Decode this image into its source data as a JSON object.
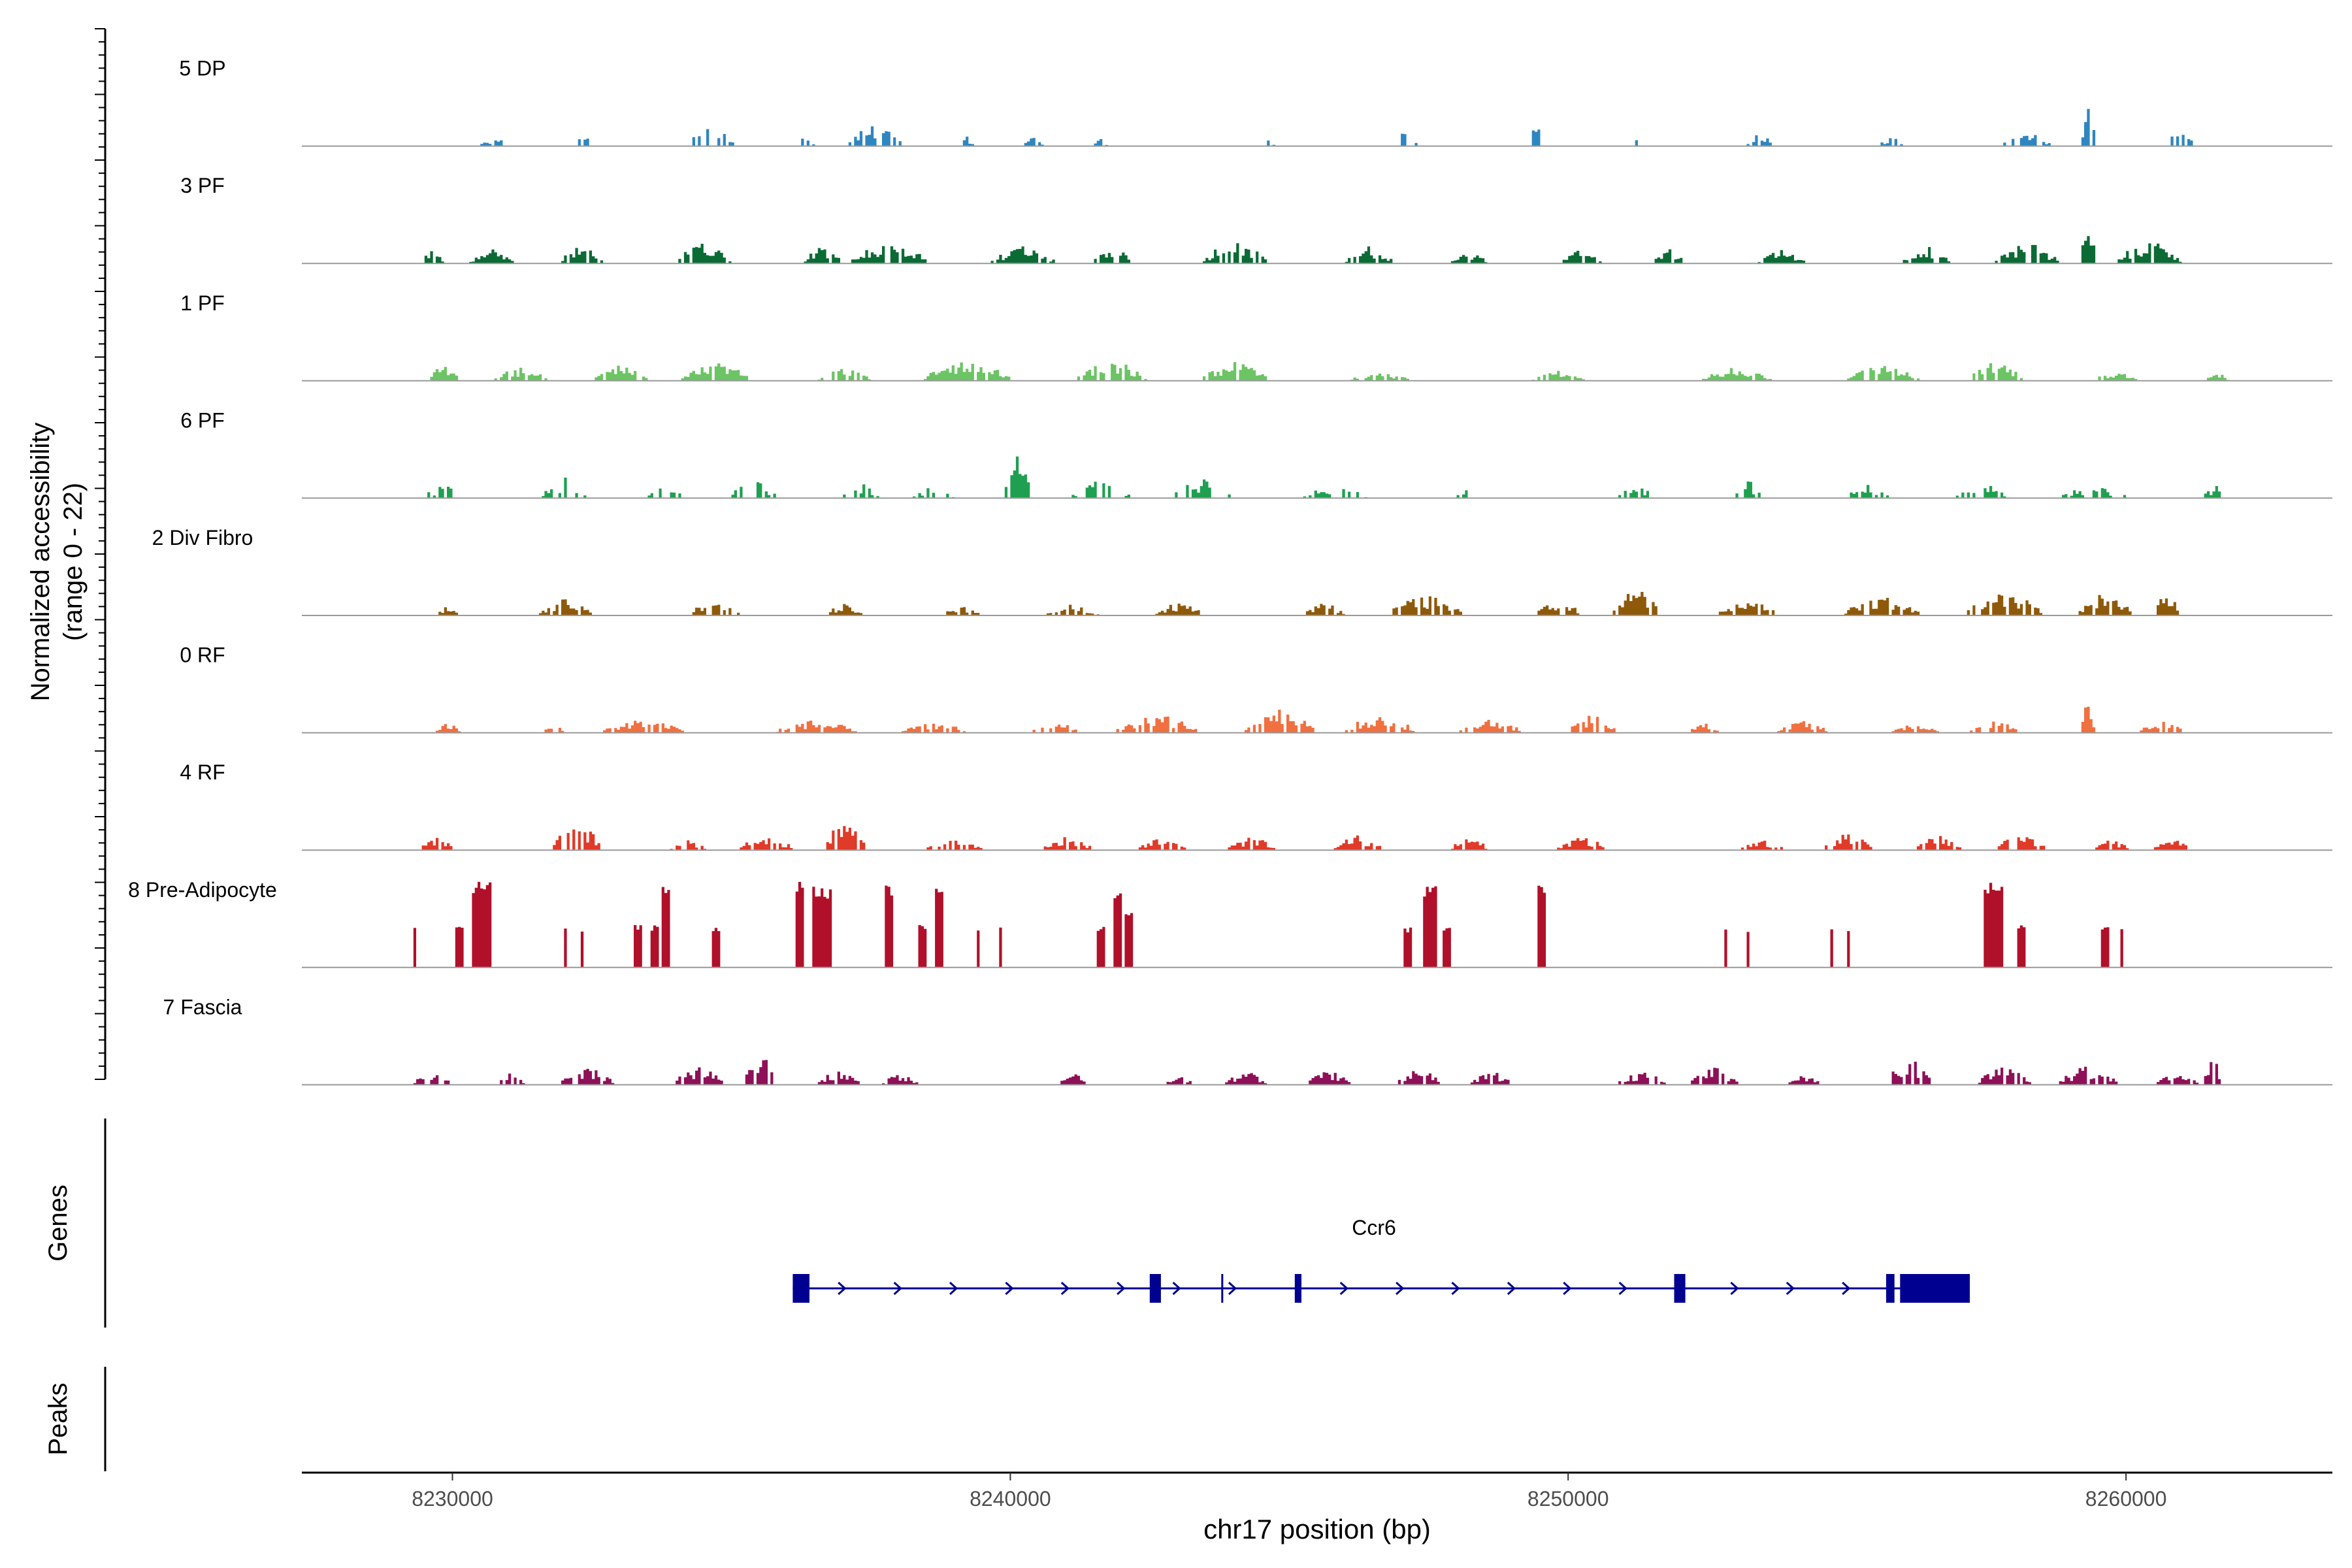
{
  "chart_data": {
    "type": "area",
    "title": "",
    "subtitle": "",
    "ylabel_line1": "Normalized accessibility",
    "ylabel_line2": "(range 0 - 22)",
    "ylim": [
      0,
      22
    ],
    "xlabel": "chr17 position (bp)",
    "xlim": [
      8227300,
      8263700
    ],
    "xticks": [
      8230000,
      8240000,
      8250000,
      8260000
    ],
    "xtick_labels": [
      "8230000",
      "8240000",
      "8250000",
      "8260000"
    ],
    "region_start": 8229000,
    "region_end": 8262100,
    "grid": false,
    "legend": "none",
    "series": [
      {
        "name": "5 DP",
        "color": "#2E86C1",
        "style": "sparse",
        "clusters": [
          [
            8230700,
            500,
            0.1
          ],
          [
            8232300,
            300,
            0.2
          ],
          [
            8234600,
            900,
            0.22
          ],
          [
            8236300,
            400,
            0.1
          ],
          [
            8237600,
            1100,
            0.24
          ],
          [
            8239200,
            300,
            0.1
          ],
          [
            8240400,
            400,
            0.1
          ],
          [
            8241600,
            300,
            0.08
          ],
          [
            8244600,
            300,
            0.07
          ],
          [
            8247100,
            400,
            0.22
          ],
          [
            8249400,
            300,
            0.22
          ],
          [
            8251200,
            200,
            0.1
          ],
          [
            8253400,
            600,
            0.12
          ],
          [
            8255800,
            500,
            0.12
          ],
          [
            8258200,
            900,
            0.15
          ],
          [
            8259300,
            250,
            0.55
          ],
          [
            8260900,
            700,
            0.14
          ]
        ]
      },
      {
        "name": "3 PF",
        "color": "#0B6B35",
        "style": "dense",
        "clusters": [
          [
            8229600,
            500,
            0.14
          ],
          [
            8230700,
            900,
            0.14
          ],
          [
            8232300,
            800,
            0.2
          ],
          [
            8234500,
            1000,
            0.24
          ],
          [
            8236600,
            700,
            0.18
          ],
          [
            8237800,
            1400,
            0.24
          ],
          [
            8240200,
            1200,
            0.18
          ],
          [
            8241800,
            700,
            0.18
          ],
          [
            8244000,
            1200,
            0.24
          ],
          [
            8246400,
            900,
            0.18
          ],
          [
            8248200,
            700,
            0.12
          ],
          [
            8250200,
            800,
            0.14
          ],
          [
            8251800,
            600,
            0.14
          ],
          [
            8253800,
            900,
            0.14
          ],
          [
            8256400,
            900,
            0.18
          ],
          [
            8258200,
            1200,
            0.22
          ],
          [
            8259300,
            300,
            0.42
          ],
          [
            8260400,
            1200,
            0.24
          ]
        ]
      },
      {
        "name": "1 PF",
        "color": "#6CC464",
        "style": "dense",
        "clusters": [
          [
            8229800,
            600,
            0.16
          ],
          [
            8231200,
            1000,
            0.14
          ],
          [
            8233000,
            1000,
            0.16
          ],
          [
            8234700,
            1300,
            0.2
          ],
          [
            8237000,
            1000,
            0.14
          ],
          [
            8239200,
            1600,
            0.22
          ],
          [
            8241800,
            1300,
            0.22
          ],
          [
            8244000,
            1200,
            0.2
          ],
          [
            8246600,
            1100,
            0.1
          ],
          [
            8249800,
            1000,
            0.1
          ],
          [
            8253000,
            1300,
            0.14
          ],
          [
            8255600,
            1400,
            0.16
          ],
          [
            8257600,
            1100,
            0.2
          ],
          [
            8259800,
            800,
            0.1
          ],
          [
            8261600,
            500,
            0.08
          ]
        ]
      },
      {
        "name": "6 PF",
        "color": "#1FA050",
        "style": "sparse",
        "clusters": [
          [
            8229800,
            700,
            0.14
          ],
          [
            8232000,
            900,
            0.22
          ],
          [
            8233800,
            700,
            0.12
          ],
          [
            8235400,
            1000,
            0.18
          ],
          [
            8237300,
            700,
            0.16
          ],
          [
            8238600,
            800,
            0.12
          ],
          [
            8240100,
            500,
            0.48
          ],
          [
            8241600,
            1100,
            0.2
          ],
          [
            8243400,
            1100,
            0.2
          ],
          [
            8245800,
            1200,
            0.14
          ],
          [
            8248100,
            500,
            0.1
          ],
          [
            8251200,
            700,
            0.12
          ],
          [
            8253200,
            500,
            0.2
          ],
          [
            8255400,
            900,
            0.14
          ],
          [
            8257400,
            1000,
            0.16
          ],
          [
            8259400,
            1200,
            0.14
          ],
          [
            8261600,
            500,
            0.12
          ]
        ]
      },
      {
        "name": "2 Div Fibro",
        "color": "#8E5A0A",
        "style": "dense",
        "clusters": [
          [
            8229900,
            400,
            0.1
          ],
          [
            8232000,
            1000,
            0.18
          ],
          [
            8234700,
            900,
            0.2
          ],
          [
            8237000,
            700,
            0.12
          ],
          [
            8239100,
            700,
            0.1
          ],
          [
            8241100,
            1000,
            0.12
          ],
          [
            8243000,
            900,
            0.14
          ],
          [
            8245600,
            800,
            0.14
          ],
          [
            8247400,
            1400,
            0.22
          ],
          [
            8249800,
            900,
            0.16
          ],
          [
            8251200,
            900,
            0.3
          ],
          [
            8253200,
            1100,
            0.18
          ],
          [
            8255600,
            1400,
            0.2
          ],
          [
            8257800,
            1400,
            0.26
          ],
          [
            8259600,
            1000,
            0.24
          ],
          [
            8260700,
            500,
            0.26
          ]
        ]
      },
      {
        "name": "0 RF",
        "color": "#F07040",
        "style": "dense",
        "clusters": [
          [
            8229900,
            500,
            0.1
          ],
          [
            8231800,
            400,
            0.08
          ],
          [
            8233400,
            1500,
            0.14
          ],
          [
            8236500,
            1500,
            0.14
          ],
          [
            8238600,
            1200,
            0.12
          ],
          [
            8240800,
            900,
            0.12
          ],
          [
            8242600,
            1500,
            0.2
          ],
          [
            8244800,
            1300,
            0.24
          ],
          [
            8246600,
            1300,
            0.2
          ],
          [
            8248600,
            1200,
            0.14
          ],
          [
            8250400,
            900,
            0.2
          ],
          [
            8252400,
            600,
            0.12
          ],
          [
            8254200,
            1000,
            0.12
          ],
          [
            8256200,
            900,
            0.1
          ],
          [
            8257600,
            900,
            0.14
          ],
          [
            8259300,
            300,
            0.34
          ],
          [
            8260600,
            900,
            0.12
          ]
        ]
      },
      {
        "name": "4 RF",
        "color": "#E03A28",
        "style": "dense",
        "clusters": [
          [
            8229700,
            600,
            0.14
          ],
          [
            8232200,
            900,
            0.32
          ],
          [
            8234200,
            700,
            0.1
          ],
          [
            8235600,
            1000,
            0.16
          ],
          [
            8237000,
            800,
            0.3
          ],
          [
            8239000,
            1100,
            0.12
          ],
          [
            8241000,
            900,
            0.16
          ],
          [
            8242700,
            900,
            0.16
          ],
          [
            8244300,
            900,
            0.14
          ],
          [
            8246200,
            900,
            0.16
          ],
          [
            8248200,
            700,
            0.14
          ],
          [
            8250200,
            900,
            0.16
          ],
          [
            8253400,
            900,
            0.12
          ],
          [
            8255000,
            900,
            0.18
          ],
          [
            8256600,
            900,
            0.16
          ],
          [
            8258100,
            900,
            0.18
          ],
          [
            8259700,
            700,
            0.12
          ],
          [
            8260800,
            700,
            0.12
          ]
        ]
      },
      {
        "name": "8 Pre-Adipocyte",
        "color": "#B0102A",
        "style": "spikes",
        "clusters": [
          [
            8229300,
            80,
            0.42
          ],
          [
            8230100,
            150,
            0.42
          ],
          [
            8230500,
            300,
            0.86
          ],
          [
            8232000,
            80,
            0.4
          ],
          [
            8232300,
            80,
            0.4
          ],
          [
            8233300,
            150,
            0.42
          ],
          [
            8233600,
            100,
            0.42
          ],
          [
            8233800,
            100,
            0.82
          ],
          [
            8234700,
            100,
            0.42
          ],
          [
            8236200,
            150,
            0.86
          ],
          [
            8236600,
            300,
            0.8
          ],
          [
            8237800,
            150,
            0.82
          ],
          [
            8238400,
            100,
            0.42
          ],
          [
            8238700,
            150,
            0.8
          ],
          [
            8239400,
            80,
            0.4
          ],
          [
            8239800,
            80,
            0.42
          ],
          [
            8241600,
            150,
            0.42
          ],
          [
            8241900,
            150,
            0.8
          ],
          [
            8242100,
            150,
            0.58
          ],
          [
            8247100,
            150,
            0.4
          ],
          [
            8247500,
            200,
            0.82
          ],
          [
            8247800,
            100,
            0.4
          ],
          [
            8249500,
            150,
            0.82
          ],
          [
            8252800,
            80,
            0.42
          ],
          [
            8253200,
            80,
            0.4
          ],
          [
            8254700,
            80,
            0.42
          ],
          [
            8255000,
            80,
            0.42
          ],
          [
            8257600,
            300,
            0.86
          ],
          [
            8258100,
            100,
            0.42
          ],
          [
            8259600,
            100,
            0.42
          ],
          [
            8259900,
            80,
            0.42
          ]
        ]
      },
      {
        "name": "7 Fascia",
        "color": "#8E1058",
        "style": "dense",
        "clusters": [
          [
            8229600,
            700,
            0.14
          ],
          [
            8231000,
            600,
            0.12
          ],
          [
            8232400,
            1000,
            0.2
          ],
          [
            8234400,
            900,
            0.2
          ],
          [
            8235500,
            600,
            0.4
          ],
          [
            8236900,
            800,
            0.16
          ],
          [
            8238000,
            700,
            0.12
          ],
          [
            8241100,
            600,
            0.12
          ],
          [
            8243000,
            500,
            0.1
          ],
          [
            8244200,
            800,
            0.14
          ],
          [
            8245700,
            800,
            0.16
          ],
          [
            8247300,
            800,
            0.18
          ],
          [
            8248600,
            800,
            0.14
          ],
          [
            8251300,
            900,
            0.14
          ],
          [
            8252600,
            900,
            0.18
          ],
          [
            8254200,
            600,
            0.12
          ],
          [
            8256100,
            900,
            0.28
          ],
          [
            8257800,
            1000,
            0.2
          ],
          [
            8259300,
            1100,
            0.2
          ],
          [
            8260900,
            800,
            0.14
          ],
          [
            8261500,
            400,
            0.32
          ]
        ]
      }
    ],
    "genes": {
      "panel_label": "Genes",
      "name": "Ccr6",
      "color": "#000090",
      "strand": "+",
      "start": 8236100,
      "end": 8257200,
      "exons": [
        [
          8236100,
          8236400
        ],
        [
          8242500,
          8242700
        ],
        [
          8245100,
          8245220
        ],
        [
          8251900,
          8252100
        ],
        [
          8255700,
          8255850
        ],
        [
          8255950,
          8257200
        ]
      ]
    },
    "peaks": {
      "panel_label": "Peaks",
      "regions": []
    }
  }
}
